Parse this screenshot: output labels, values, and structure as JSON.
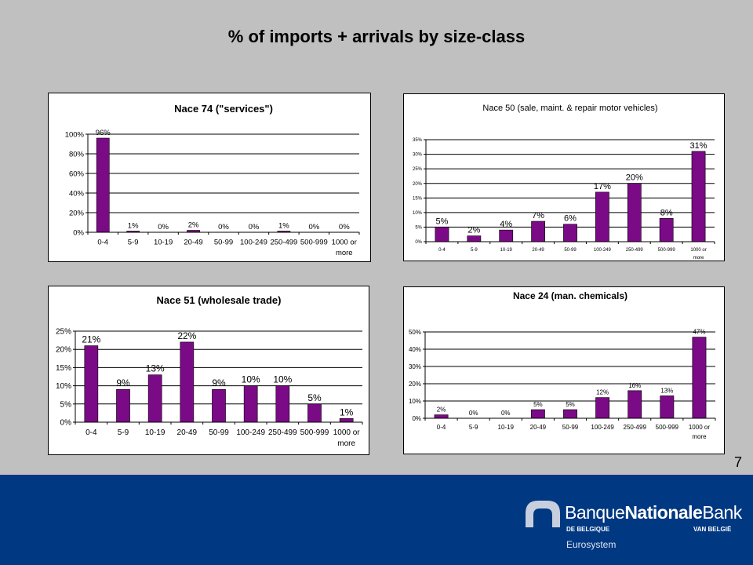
{
  "page": {
    "title": "% of imports + arrivals by size-class",
    "page_number": "7"
  },
  "brand": {
    "prefix": "Banque",
    "middle": "Nationale",
    "suffix": "Bank",
    "sub_left": "DE BELGIQUE",
    "sub_right": "VAN BELGIË",
    "network": "Eurosystem",
    "colors": {
      "footer": "#003882",
      "logo_mark": "#c7cfde"
    }
  },
  "colors": {
    "bar": "#7b0a86",
    "background": "#c0c0c0"
  },
  "chart_data": [
    {
      "id": "nace74",
      "type": "bar",
      "title": "Nace 74 (\"services\")",
      "categories": [
        "0-4",
        "5-9",
        "10-19",
        "20-49",
        "50-99",
        "100-249",
        "250-499",
        "500-999",
        "1000 or more"
      ],
      "values": [
        96,
        1,
        0,
        2,
        0,
        0,
        1,
        0,
        0
      ],
      "data_labels": [
        "96%",
        "1%",
        "0%",
        "2%",
        "0%",
        "0%",
        "1%",
        "0%",
        "0%"
      ],
      "ylim": [
        0,
        100
      ],
      "yticks": [
        0,
        20,
        40,
        60,
        80,
        100
      ],
      "ytick_labels": [
        "0%",
        "20%",
        "40%",
        "60%",
        "80%",
        "100%"
      ],
      "grid": true,
      "legend": "none"
    },
    {
      "id": "nace50",
      "type": "bar",
      "title": "Nace 50 (sale, maint. & repair motor vehicles)",
      "categories": [
        "0-4",
        "5-9",
        "10-19",
        "20-49",
        "50-99",
        "100-249",
        "250-499",
        "500-999",
        "1000 or more"
      ],
      "values": [
        5,
        2,
        4,
        7,
        6,
        17,
        20,
        8,
        31
      ],
      "data_labels": [
        "5%",
        "2%",
        "4%",
        "7%",
        "6%",
        "17%",
        "20%",
        "8%",
        "31%"
      ],
      "ylim": [
        0,
        35
      ],
      "yticks": [
        0,
        5,
        10,
        15,
        20,
        25,
        30,
        35
      ],
      "ytick_labels": [
        "0%",
        "5%",
        "10%",
        "15%",
        "20%",
        "25%",
        "30%",
        "35%"
      ],
      "grid": true,
      "legend": "none"
    },
    {
      "id": "nace51",
      "type": "bar",
      "title": "Nace 51 (wholesale trade)",
      "categories": [
        "0-4",
        "5-9",
        "10-19",
        "20-49",
        "50-99",
        "100-249",
        "250-499",
        "500-999",
        "1000 or more"
      ],
      "values": [
        21,
        9,
        13,
        22,
        9,
        10,
        10,
        5,
        1
      ],
      "data_labels": [
        "21%",
        "9%",
        "13%",
        "22%",
        "9%",
        "10%",
        "10%",
        "5%",
        "1%"
      ],
      "ylim": [
        0,
        25
      ],
      "yticks": [
        0,
        5,
        10,
        15,
        20,
        25
      ],
      "ytick_labels": [
        "0%",
        "5%",
        "10%",
        "15%",
        "20%",
        "25%"
      ],
      "grid": true,
      "legend": "none"
    },
    {
      "id": "nace24",
      "type": "bar",
      "title": "Nace 24 (man. chemicals)",
      "categories": [
        "0-4",
        "5-9",
        "10-19",
        "20-49",
        "50-99",
        "100-249",
        "250-499",
        "500-999",
        "1000 or more"
      ],
      "values": [
        2,
        0,
        0,
        5,
        5,
        12,
        16,
        13,
        47
      ],
      "data_labels": [
        "2%",
        "0%",
        "0%",
        "5%",
        "5%",
        "12%",
        "16%",
        "13%",
        "47%"
      ],
      "ylim": [
        0,
        50
      ],
      "yticks": [
        0,
        10,
        20,
        30,
        40,
        50
      ],
      "ytick_labels": [
        "0%",
        "10%",
        "20%",
        "30%",
        "40%",
        "50%"
      ],
      "grid": true,
      "legend": "none"
    }
  ]
}
